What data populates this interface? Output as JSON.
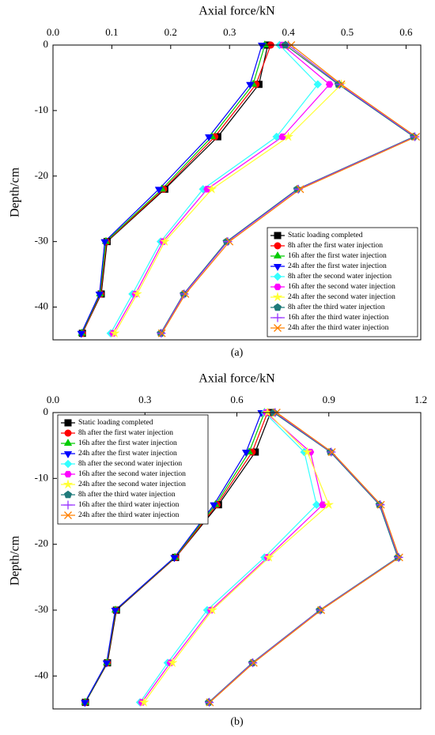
{
  "chart_data": [
    {
      "type": "line",
      "x_label": "Axial force/kN",
      "y_label": "Depth/cm",
      "caption": "(a)",
      "y": [
        0,
        -6,
        -14,
        -22,
        -30,
        -38,
        -44
      ],
      "xlim": [
        0,
        0.625
      ],
      "xticks": [
        {
          "value": 0,
          "label": "0.0"
        },
        0.1,
        0.2,
        0.3,
        0.4,
        0.5,
        0.6
      ],
      "ylim": [
        -45,
        0
      ],
      "yticks": [
        0,
        -10,
        -20,
        -30,
        -40
      ],
      "legend": "lower right",
      "series": [
        {
          "name": "Static loading completed",
          "color": "#000000",
          "marker": "square",
          "values": [
            0.365,
            0.35,
            0.28,
            0.19,
            0.092,
            0.082,
            0.05
          ]
        },
        {
          "name": "8h after the first water injection",
          "color": "#ff0000",
          "marker": "circle",
          "values": [
            0.37,
            0.345,
            0.275,
            0.188,
            0.091,
            0.081,
            0.05
          ]
        },
        {
          "name": "16h after the first water injection",
          "color": "#00cc00",
          "marker": "triangle-up",
          "values": [
            0.36,
            0.34,
            0.27,
            0.185,
            0.09,
            0.08,
            0.049
          ]
        },
        {
          "name": "24h after the first water injection",
          "color": "#0000ff",
          "marker": "triangle-down",
          "values": [
            0.355,
            0.335,
            0.265,
            0.18,
            0.088,
            0.079,
            0.048
          ]
        },
        {
          "name": "8h after the second water injection",
          "color": "#33ffff",
          "marker": "diamond",
          "values": [
            0.385,
            0.45,
            0.38,
            0.255,
            0.183,
            0.135,
            0.098
          ]
        },
        {
          "name": "16h after the second water injection",
          "color": "#ff00ff",
          "marker": "hexagon",
          "values": [
            0.39,
            0.47,
            0.39,
            0.262,
            0.187,
            0.14,
            0.102
          ]
        },
        {
          "name": "24h after the second water injection",
          "color": "#ffff33",
          "marker": "star",
          "values": [
            0.395,
            0.49,
            0.4,
            0.27,
            0.19,
            0.143,
            0.105
          ]
        },
        {
          "name": "8h after the third water injection",
          "color": "#1f7a7a",
          "marker": "pentagon",
          "values": [
            0.395,
            0.485,
            0.613,
            0.415,
            0.295,
            0.222,
            0.183
          ]
        },
        {
          "name": "16h after the third water injection",
          "color": "#9933ff",
          "marker": "plus",
          "values": [
            0.4,
            0.487,
            0.615,
            0.417,
            0.297,
            0.223,
            0.184
          ]
        },
        {
          "name": "24h after the third water injection",
          "color": "#ff8000",
          "marker": "cross",
          "values": [
            0.405,
            0.49,
            0.617,
            0.42,
            0.3,
            0.225,
            0.185
          ]
        }
      ]
    },
    {
      "type": "line",
      "x_label": "Axial force/kN",
      "y_label": "Depth/cm",
      "caption": "(b)",
      "y": [
        0,
        -6,
        -14,
        -22,
        -30,
        -38,
        -44
      ],
      "xlim": [
        0,
        1.2
      ],
      "xticks": [
        {
          "value": 0,
          "label": "0.0"
        },
        0.3,
        0.6,
        0.9,
        1.2
      ],
      "ylim": [
        -45,
        0
      ],
      "yticks": [
        0,
        -10,
        -20,
        -30,
        -40
      ],
      "legend": "upper left",
      "series": [
        {
          "name": "Static loading completed",
          "color": "#000000",
          "marker": "square",
          "values": [
            0.71,
            0.66,
            0.54,
            0.4,
            0.207,
            0.178,
            0.106
          ]
        },
        {
          "name": "8h after the first water injection",
          "color": "#ff0000",
          "marker": "circle",
          "values": [
            0.7,
            0.65,
            0.535,
            0.4,
            0.205,
            0.177,
            0.105
          ]
        },
        {
          "name": "16h after the first water injection",
          "color": "#00cc00",
          "marker": "triangle-up",
          "values": [
            0.69,
            0.64,
            0.53,
            0.398,
            0.204,
            0.176,
            0.105
          ]
        },
        {
          "name": "24h after the first water injection",
          "color": "#0000ff",
          "marker": "triangle-down",
          "values": [
            0.68,
            0.63,
            0.525,
            0.396,
            0.203,
            0.175,
            0.104
          ]
        },
        {
          "name": "8h after the second water injection",
          "color": "#33ffff",
          "marker": "diamond",
          "values": [
            0.69,
            0.82,
            0.86,
            0.69,
            0.503,
            0.374,
            0.284
          ]
        },
        {
          "name": "16h after the second water injection",
          "color": "#ff00ff",
          "marker": "hexagon",
          "values": [
            0.695,
            0.84,
            0.88,
            0.7,
            0.515,
            0.383,
            0.29
          ]
        },
        {
          "name": "24h after the second water injection",
          "color": "#ffff33",
          "marker": "star",
          "values": [
            0.7,
            0.83,
            0.9,
            0.705,
            0.52,
            0.39,
            0.297
          ]
        },
        {
          "name": "8h after the third water injection",
          "color": "#1f7a7a",
          "marker": "pentagon",
          "values": [
            0.72,
            0.905,
            1.065,
            1.125,
            0.87,
            0.65,
            0.508
          ]
        },
        {
          "name": "16h after the third water injection",
          "color": "#9933ff",
          "marker": "plus",
          "values": [
            0.725,
            0.908,
            1.068,
            1.128,
            0.872,
            0.652,
            0.51
          ]
        },
        {
          "name": "24h after the third water injection",
          "color": "#ff8000",
          "marker": "cross",
          "values": [
            0.73,
            0.91,
            1.07,
            1.13,
            0.875,
            0.655,
            0.512
          ]
        }
      ]
    }
  ]
}
